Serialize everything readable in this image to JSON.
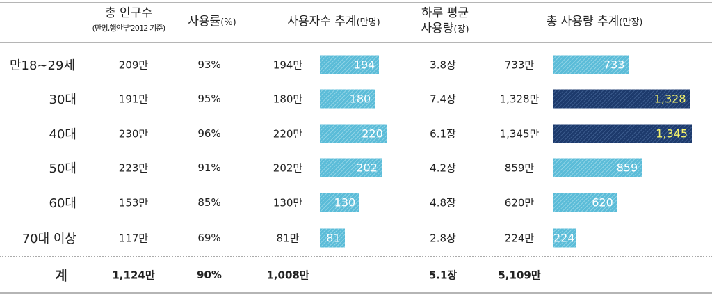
{
  "header": {
    "population": "총 인구수",
    "population_note": "(만명,행안부'2012 기준)",
    "usage_rate": "사용률",
    "usage_rate_unit": "(%)",
    "users": "사용자수 추계",
    "users_unit": "(만명)",
    "daily_avg_line1": "하루 평균",
    "daily_avg_line2": "사용량",
    "daily_avg_unit": "(장)",
    "total_usage": "총 사용량 추계",
    "total_usage_unit": "(만장)"
  },
  "rows": [
    {
      "age": "만18~29세",
      "population": "209만",
      "rate": "93%",
      "users": "194만",
      "users_bar": "194",
      "daily": "3.8장",
      "total": "733만",
      "total_bar": "733"
    },
    {
      "age": "30대",
      "population": "191만",
      "rate": "95%",
      "users": "180만",
      "users_bar": "180",
      "daily": "7.4장",
      "total": "1,328만",
      "total_bar": "1,328"
    },
    {
      "age": "40대",
      "population": "230만",
      "rate": "96%",
      "users": "220만",
      "users_bar": "220",
      "daily": "6.1장",
      "total": "1,345만",
      "total_bar": "1,345"
    },
    {
      "age": "50대",
      "population": "223만",
      "rate": "91%",
      "users": "202만",
      "users_bar": "202",
      "daily": "4.2장",
      "total": "859만",
      "total_bar": "859"
    },
    {
      "age": "60대",
      "population": "153만",
      "rate": "85%",
      "users": "130만",
      "users_bar": "130",
      "daily": "4.8장",
      "total": "620만",
      "total_bar": "620"
    },
    {
      "age": "70대 이상",
      "population": "117만",
      "rate": "69%",
      "users": "81만",
      "users_bar": "81",
      "daily": "2.8장",
      "total": "224만",
      "total_bar": "224"
    }
  ],
  "total_row": {
    "label": "계",
    "population": "1,124만",
    "rate": "90%",
    "users": "1,008만",
    "daily": "5.1장",
    "total": "5,109만"
  },
  "colors": {
    "bar_light": "#5bbcd8",
    "bar_dark": "#1d3a6c",
    "dark_label": "#f4f36a"
  },
  "chart_data": {
    "type": "table",
    "title": "",
    "categories": [
      "만18~29세",
      "30대",
      "40대",
      "50대",
      "60대",
      "70대 이상"
    ],
    "series": [
      {
        "name": "사용자수 추계(만명)",
        "values": [
          194,
          180,
          220,
          202,
          130,
          81
        ]
      },
      {
        "name": "총 사용량 추계(만장)",
        "values": [
          733,
          1328,
          1345,
          859,
          620,
          224
        ],
        "highlight": [
          false,
          true,
          true,
          false,
          false,
          false
        ]
      }
    ]
  }
}
